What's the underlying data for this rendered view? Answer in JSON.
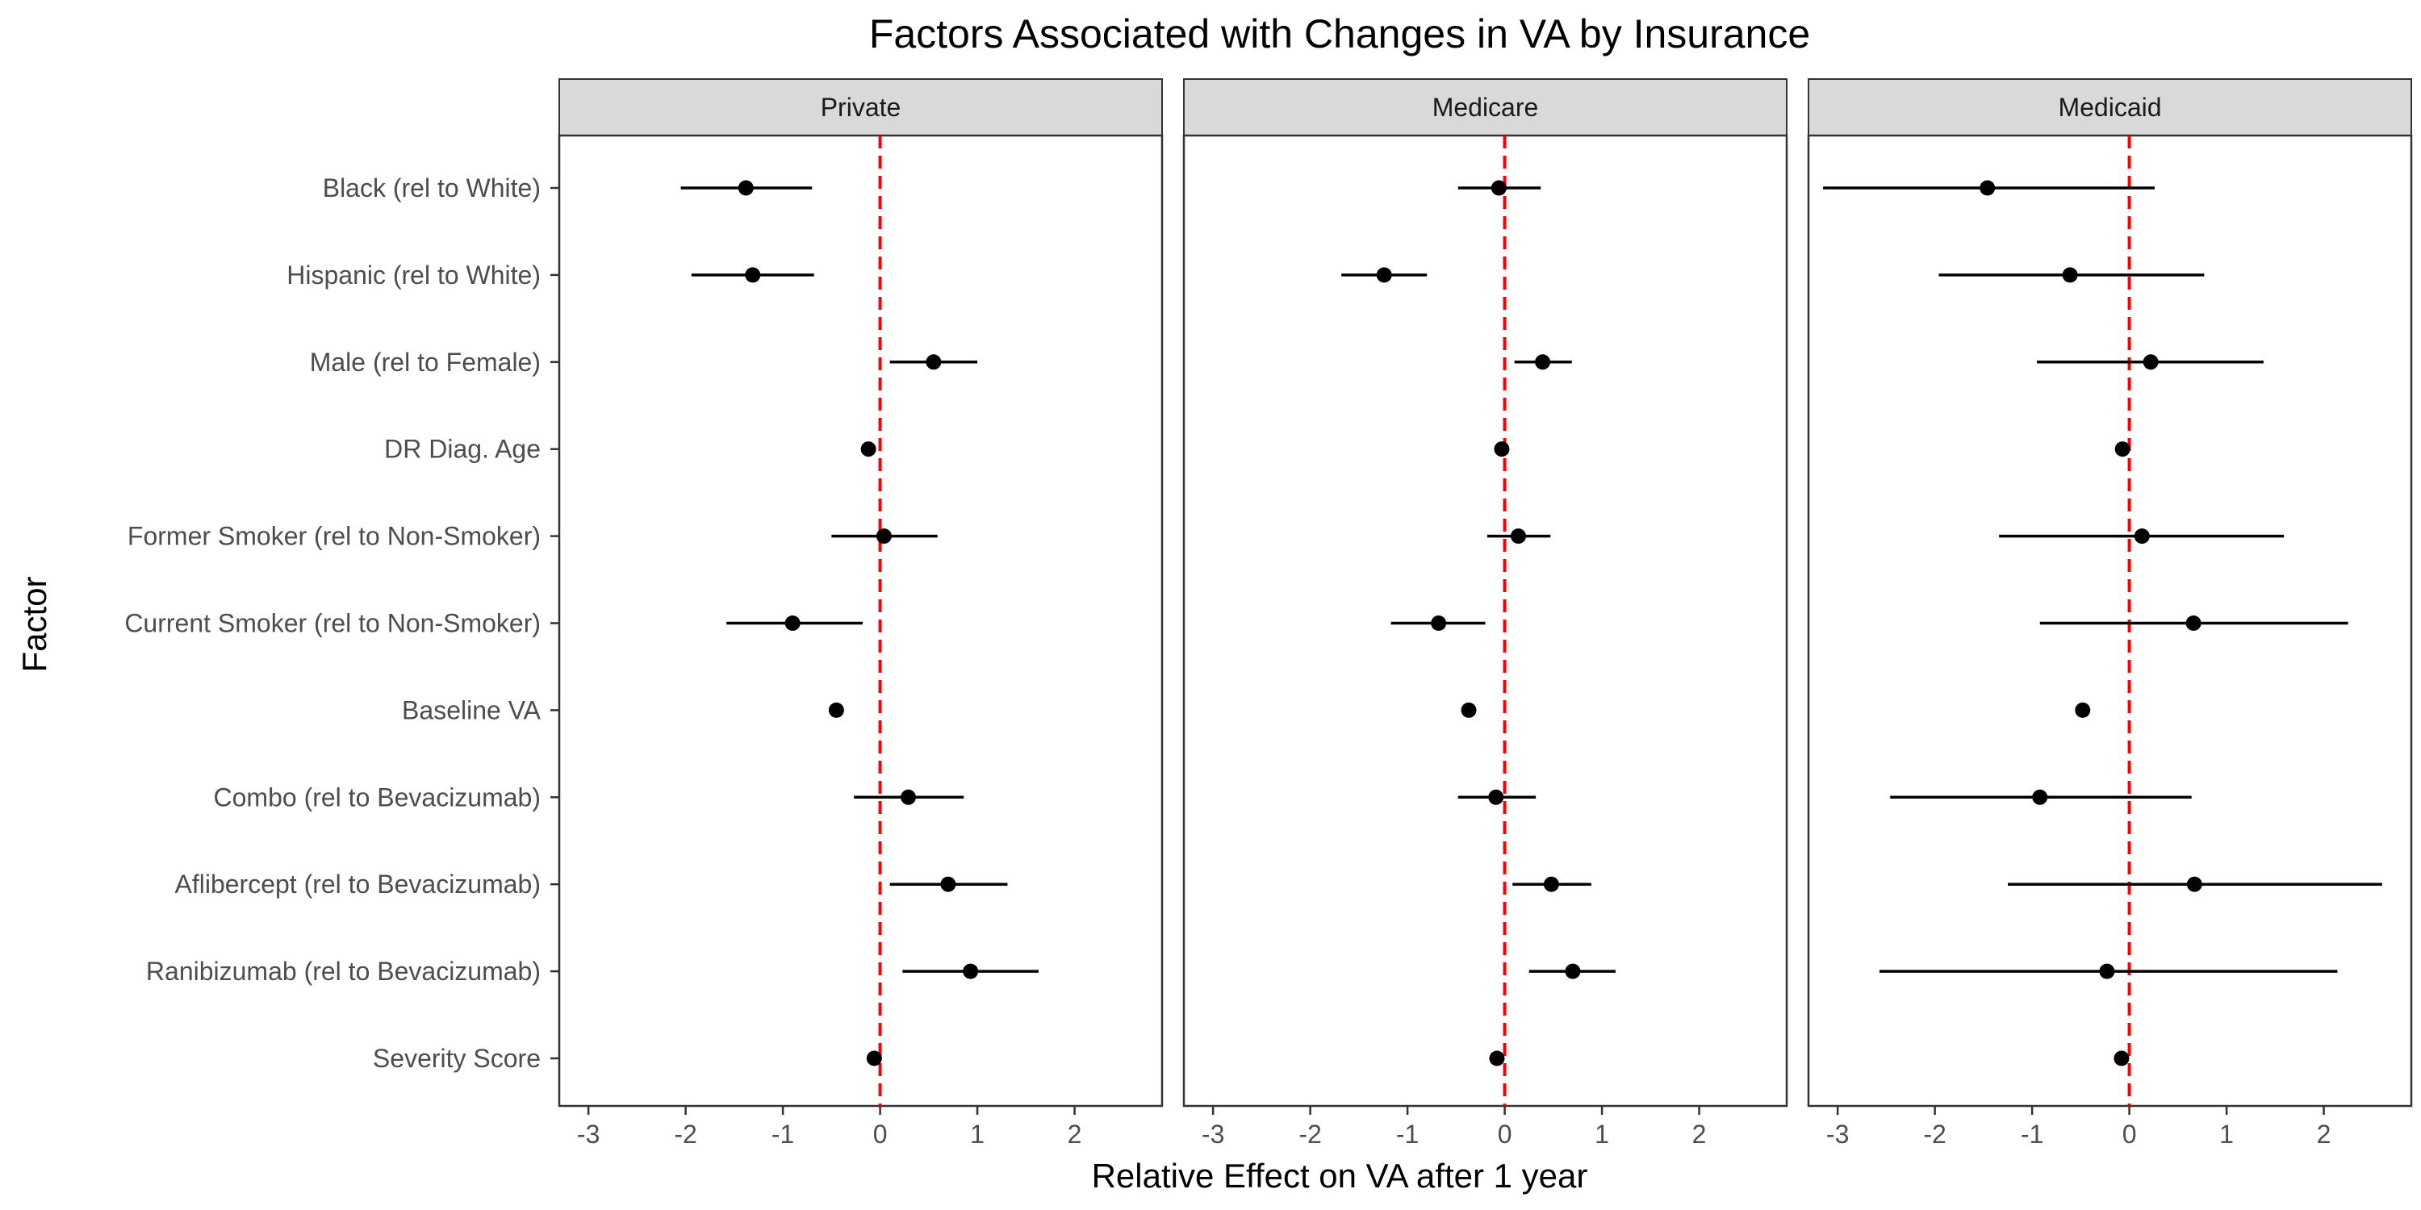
{
  "chart_data": {
    "type": "scatter",
    "subtype": "forest-plot",
    "title": "Factors Associated with Changes in VA by Insurance",
    "xlabel": "Relative Effect on VA after 1 year",
    "ylabel": "Factor",
    "xlim": [
      -3.3,
      2.9
    ],
    "x_ticks": [
      "-3",
      "-2",
      "-1",
      "0",
      "1",
      "2"
    ],
    "reference_line": {
      "x": 0,
      "color": "#ff0000",
      "style": "dashed"
    },
    "grid": false,
    "legend": "none",
    "factors": [
      "Black (rel to White)",
      "Hispanic (rel to White)",
      "Male (rel to Female)",
      "DR Diag. Age",
      "Former Smoker (rel to Non-Smoker)",
      "Current Smoker (rel to Non-Smoker)",
      "Baseline VA",
      "Combo (rel to Bevacizumab)",
      "Aflibercept (rel to Bevacizumab)",
      "Ranibizumab (rel to Bevacizumab)",
      "Severity Score"
    ],
    "panels": [
      {
        "name": "Private",
        "estimate": [
          -1.38,
          -1.31,
          0.55,
          -0.12,
          0.04,
          -0.9,
          -0.45,
          0.29,
          0.7,
          0.93,
          -0.06
        ],
        "lower": [
          -2.05,
          -1.94,
          0.1,
          -0.12,
          -0.5,
          -1.58,
          -0.45,
          -0.27,
          0.1,
          0.23,
          -0.06
        ],
        "upper": [
          -0.7,
          -0.68,
          1.0,
          -0.12,
          0.59,
          -0.18,
          -0.45,
          0.86,
          1.31,
          1.63,
          -0.06
        ]
      },
      {
        "name": "Medicare",
        "estimate": [
          -0.06,
          -1.24,
          0.39,
          -0.03,
          0.14,
          -0.68,
          -0.37,
          -0.09,
          0.48,
          0.7,
          -0.08
        ],
        "lower": [
          -0.48,
          -1.68,
          0.1,
          -0.03,
          -0.18,
          -1.17,
          -0.37,
          -0.48,
          0.08,
          0.25,
          -0.08
        ],
        "upper": [
          0.37,
          -0.8,
          0.69,
          -0.03,
          0.47,
          -0.2,
          -0.37,
          0.32,
          0.89,
          1.14,
          -0.08
        ]
      },
      {
        "name": "Medicaid",
        "estimate": [
          -1.46,
          -0.61,
          0.22,
          -0.07,
          0.13,
          0.66,
          -0.48,
          -0.92,
          0.67,
          -0.23,
          -0.08
        ],
        "lower": [
          -3.15,
          -1.96,
          -0.95,
          -0.07,
          -1.34,
          -0.92,
          -0.48,
          -2.46,
          -1.25,
          -2.57,
          -0.08
        ],
        "upper": [
          0.26,
          0.77,
          1.38,
          -0.07,
          1.59,
          2.25,
          -0.48,
          0.64,
          2.6,
          2.14,
          -0.08
        ]
      }
    ]
  }
}
